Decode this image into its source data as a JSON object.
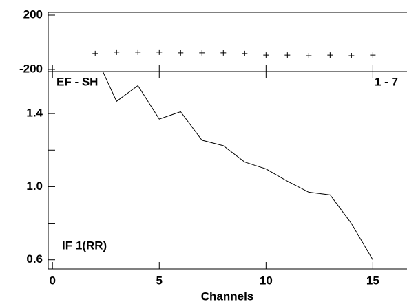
{
  "chart_data": [
    {
      "type": "scatter",
      "marker": "+",
      "color": "#000000",
      "x": [
        2,
        3,
        4,
        5,
        6,
        7,
        8,
        9,
        10,
        11,
        12,
        13,
        14,
        15
      ],
      "values": [
        -83,
        -73,
        -73,
        -73,
        -78,
        -78,
        -78,
        -83,
        -94,
        -94,
        -99,
        -94,
        -99,
        -94
      ],
      "xlim": [
        -0.2,
        16.6
      ],
      "ylim": [
        -200,
        200
      ],
      "yticks": [
        200,
        -200
      ],
      "reference_line": 0
    },
    {
      "type": "line",
      "color": "#000000",
      "x": [
        2,
        3,
        4,
        5,
        6,
        7,
        8,
        9,
        10,
        11,
        12,
        13,
        14,
        15
      ],
      "values": [
        1.72,
        1.467,
        1.553,
        1.37,
        1.41,
        1.254,
        1.224,
        1.135,
        1.097,
        1.03,
        0.97,
        0.955,
        0.798,
        0.6
      ],
      "xlim": [
        -0.2,
        16.6
      ],
      "ylim": [
        0.55,
        1.63
      ],
      "xticks": [
        0,
        5,
        10,
        15
      ],
      "yticks": [
        {
          "value": 0.6,
          "label": "0.6"
        },
        {
          "value": 1.0,
          "label": "1.0"
        },
        {
          "value": 1.4,
          "label": "1.4"
        }
      ],
      "minor_yticks": [
        0.8,
        1.2
      ],
      "x_label": "Channels",
      "annotations": [
        "EF - SH",
        "1 - 7",
        "IF 1(RR)"
      ]
    }
  ]
}
